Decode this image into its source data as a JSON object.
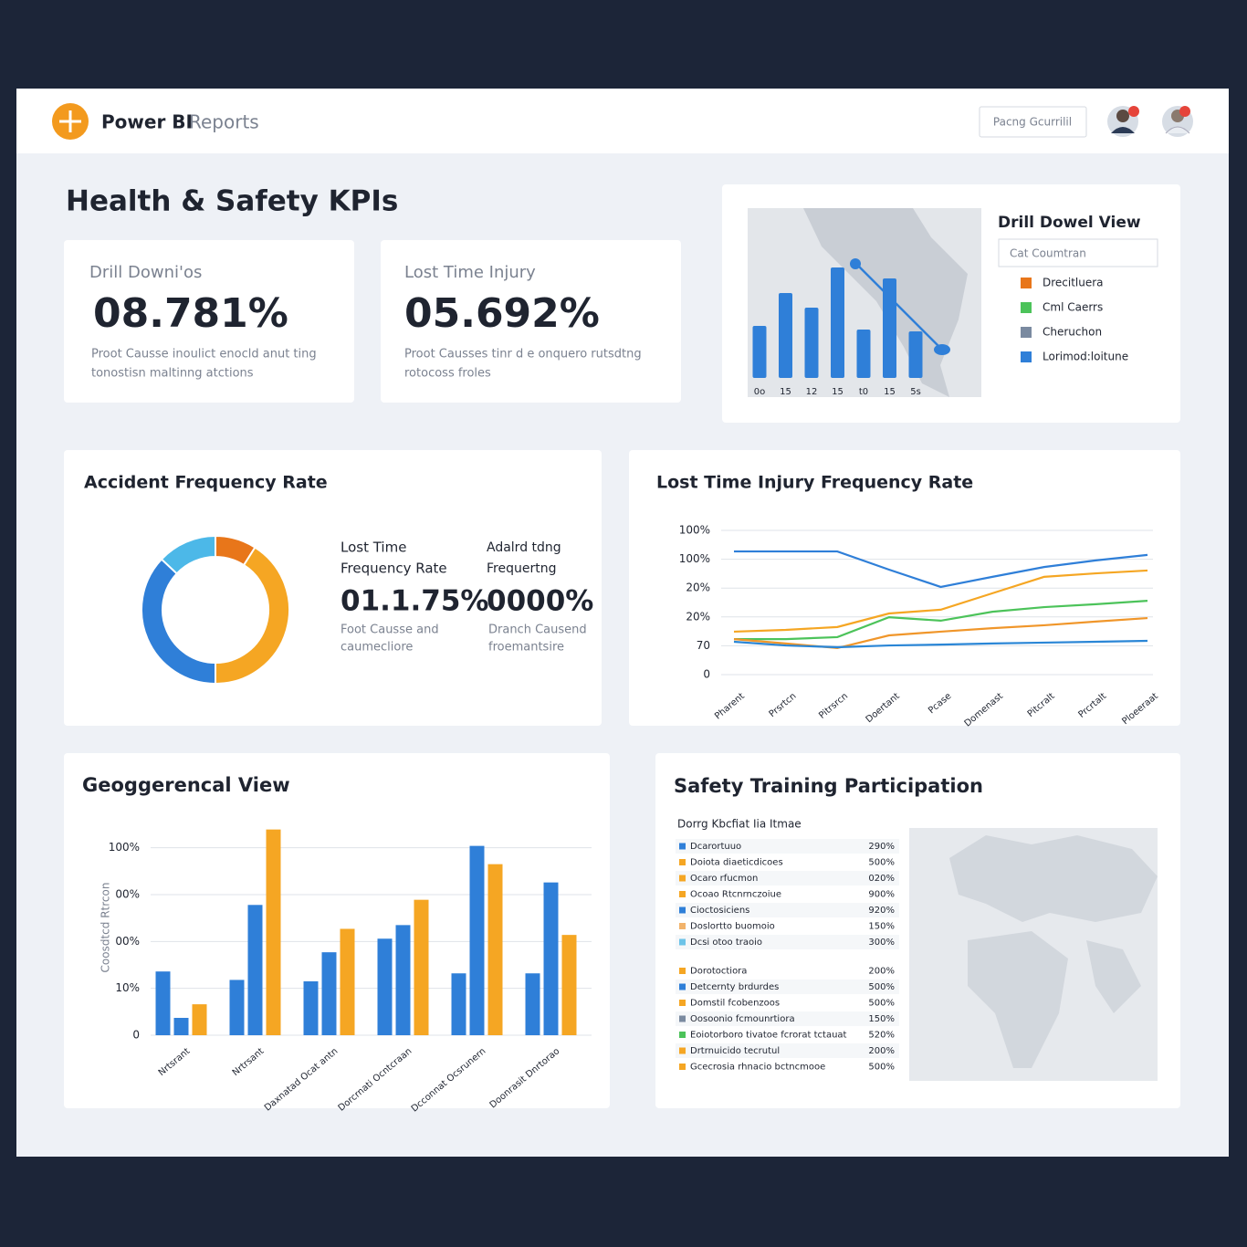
{
  "header": {
    "brand_bold": "Power BI",
    "brand_light": "Reports",
    "search": "Pacng Gcurrilil"
  },
  "page_title": "Health & Safety KPIs",
  "kpis": [
    {
      "label": "Drill Downi'os",
      "value": "08.781%",
      "description": [
        "Proot Causse inoulict enocld anut ting",
        "tonostisn maltinng atctions"
      ]
    },
    {
      "label": "Lost Time Injury",
      "value": "05.692%",
      "description": [
        "Proot Causses tinr d e onquero rutsdtng",
        "rotocoss froles"
      ]
    }
  ],
  "chart_data": [
    {
      "type": "bar",
      "title": "Drill Dowel View",
      "filter": "Cat Coumtran",
      "categories": [
        "0o",
        "15",
        "12",
        "15",
        "t0",
        "15",
        "5s"
      ],
      "values": [
        57,
        93,
        77,
        121,
        53,
        109,
        51
      ],
      "ylim": [
        0,
        130
      ],
      "color": "#2f7fd8",
      "legend": [
        {
          "name": "Drecitluera",
          "color": "#e8761a"
        },
        {
          "name": "Cml Caerrs",
          "color": "#4cc35a"
        },
        {
          "name": "Cheruchon",
          "color": "#7a8aa0"
        },
        {
          "name": "Lorimod:loitune",
          "color": "#2f7fd8"
        }
      ]
    },
    {
      "type": "pie",
      "donut": true,
      "title": "Accident Frequency Rate",
      "values": [
        9,
        41,
        37,
        13
      ],
      "colors": [
        "#e8761a",
        "#f5a623",
        "#2f7fd8",
        "#4cb8e8"
      ],
      "metrics": [
        {
          "label": [
            "Lost Time",
            "Frequency Rate"
          ],
          "value": "01.1.75%",
          "description": [
            "Foot Causse and",
            "caumecliore"
          ]
        },
        {
          "label": [
            "Adalrd tdng",
            "Frequertng"
          ],
          "value": "0000%",
          "description": [
            "Dranch Causend",
            "froemantsire"
          ]
        }
      ]
    },
    {
      "type": "line",
      "title": "Lost Time Injury Frequency Rate",
      "categories": [
        "Pharent",
        "Prsrtcn",
        "Pitrsrcn",
        "Doertant",
        "Pcase",
        "Domenast",
        "Pitcralt",
        "Prcrtalt",
        "Ploeeraat"
      ],
      "series": [
        {
          "color": "#2f7fd8",
          "values": [
            4.27,
            4.27,
            4.27,
            3.64,
            3.04,
            3.39,
            3.73,
            3.96,
            4.15
          ]
        },
        {
          "color": "#f5a623",
          "values": [
            1.49,
            1.55,
            1.65,
            2.12,
            2.25,
            2.82,
            3.39,
            3.51,
            3.61
          ]
        },
        {
          "color": "#4cc35a",
          "values": [
            1.23,
            1.23,
            1.3,
            1.99,
            1.87,
            2.18,
            2.34,
            2.44,
            2.56
          ]
        },
        {
          "color": "#f0962a",
          "values": [
            1.23,
            1.08,
            0.92,
            1.36,
            1.49,
            1.61,
            1.71,
            1.84,
            1.96
          ]
        },
        {
          "color": "#2a86d6",
          "values": [
            1.14,
            1.01,
            0.95,
            1.01,
            1.04,
            1.08,
            1.11,
            1.14,
            1.17
          ]
        }
      ],
      "ylim": [
        0,
        5
      ],
      "yticks": [
        0,
        {
          "value": 1,
          "label": "70"
        },
        {
          "value": 2,
          "label": "20%"
        },
        {
          "value": 3,
          "label": "20%"
        },
        {
          "value": 4,
          "label": "100%"
        },
        {
          "value": 5,
          "label": "100%"
        }
      ],
      "grid": true
    },
    {
      "type": "bar",
      "title": "Geoggerencal View",
      "y_label": "Coosdtcd Rtrcon",
      "categories": [
        "Nrtsrant",
        "Nrtrsant",
        "Daxnatad Ocat antn",
        "Dorcrnati Ocntcraan",
        "Dcconnat Ocsrunern",
        "Doonrasit Dnrtorao"
      ],
      "series": [
        {
          "color": "#2f7fd8",
          "values": [
            1.36,
            1.18,
            1.15,
            2.06,
            1.32,
            1.32
          ]
        },
        {
          "color": "#2f7fd8",
          "values": [
            0.37,
            2.78,
            1.77,
            2.35,
            4.04,
            3.26
          ]
        },
        {
          "color": "#f5a623",
          "values": [
            0.66,
            4.39,
            2.27,
            2.89,
            3.65,
            2.14
          ]
        }
      ],
      "ylim": [
        0,
        4.5
      ],
      "yticks": [
        0,
        {
          "value": 1,
          "label": "10%"
        },
        {
          "value": 2,
          "label": "00%"
        },
        {
          "value": 3,
          "label": "00%"
        },
        {
          "value": 4,
          "label": "100%"
        }
      ],
      "grid": true
    }
  ],
  "training": {
    "title": "Safety Training Participation",
    "subtitle": "Dorrg Kbcfiat Iia Itmae",
    "rows": [
      {
        "label": "Dcarortuuo",
        "value": "290%",
        "color": "#2f7fd8"
      },
      {
        "label": "Doiota diaeticdicoes",
        "value": "500%",
        "color": "#f5a623"
      },
      {
        "label": "Ocaro rfucmon",
        "value": "020%",
        "color": "#f5a623"
      },
      {
        "label": "Ocoao Rtcnrnczoiue",
        "value": "900%",
        "color": "#f5a623"
      },
      {
        "label": "Cioctosiciens",
        "value": "920%",
        "color": "#2f7fd8"
      },
      {
        "label": "Doslortto buomoio",
        "value": "150%",
        "color": "#f2b36b"
      },
      {
        "label": "Dcsi otoo traoio",
        "value": "300%",
        "color": "#6cc3e8"
      },
      {
        "label": "Dorotoctiora",
        "value": "200%",
        "color": "#f5a623"
      },
      {
        "label": "Detcernty brdurdes",
        "value": "500%",
        "color": "#2f7fd8"
      },
      {
        "label": "Domstil fcobenzoos",
        "value": "500%",
        "color": "#f5a623"
      },
      {
        "label": "Oosoonio fcmounrtiora",
        "value": "150%",
        "color": "#7a8aa0"
      },
      {
        "label": "Eoiotorboro tivatoe fcrorat tctauat",
        "value": "520%",
        "color": "#4cc35a"
      },
      {
        "label": "Drtrnuicido tecrutul",
        "value": "200%",
        "color": "#f5a623"
      },
      {
        "label": "Gcecrosia rhnacio bctncmooe",
        "value": "500%",
        "color": "#f5a623"
      }
    ]
  }
}
